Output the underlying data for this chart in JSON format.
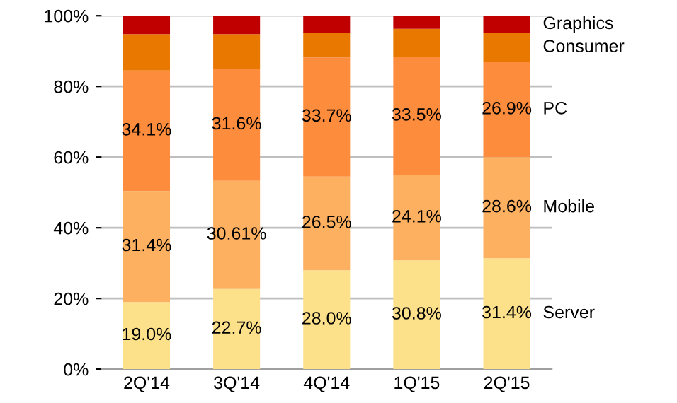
{
  "chart_data": {
    "type": "bar",
    "stacked": true,
    "categories": [
      "2Q'14",
      "3Q'14",
      "4Q'14",
      "1Q'15",
      "2Q'15"
    ],
    "series": [
      {
        "name": "Server",
        "color": "#fde08a",
        "values": [
          19.0,
          22.7,
          28.0,
          30.8,
          31.4
        ],
        "value_labels": [
          "19.0%",
          "22.7%",
          "28.0%",
          "30.8%",
          "31.4%"
        ]
      },
      {
        "name": "Mobile",
        "color": "#fdb060",
        "values": [
          31.4,
          30.61,
          26.5,
          24.1,
          28.6
        ],
        "value_labels": [
          "31.4%",
          "30.61%",
          "26.5%",
          "24.1%",
          "28.6%"
        ]
      },
      {
        "name": "PC",
        "color": "#fd8c3c",
        "values": [
          34.1,
          31.6,
          33.7,
          33.5,
          26.9
        ],
        "value_labels": [
          "34.1%",
          "31.6%",
          "33.7%",
          "33.5%",
          "26.9%"
        ]
      },
      {
        "name": "Consumer",
        "color": "#e87800",
        "values": [
          10.3,
          9.9,
          6.9,
          7.9,
          8.2
        ]
      },
      {
        "name": "Graphics",
        "color": "#c00000",
        "values": [
          5.2,
          5.2,
          4.9,
          3.7,
          4.9
        ]
      }
    ],
    "ylim": [
      0,
      100
    ],
    "yticks": [
      {
        "value": 0,
        "label": "0%"
      },
      {
        "value": 20,
        "label": "20%"
      },
      {
        "value": 40,
        "label": "40%"
      },
      {
        "value": 60,
        "label": "60%"
      },
      {
        "value": 80,
        "label": "80%"
      },
      {
        "value": 100,
        "label": "100%"
      }
    ],
    "grid": "y",
    "legend": false
  }
}
